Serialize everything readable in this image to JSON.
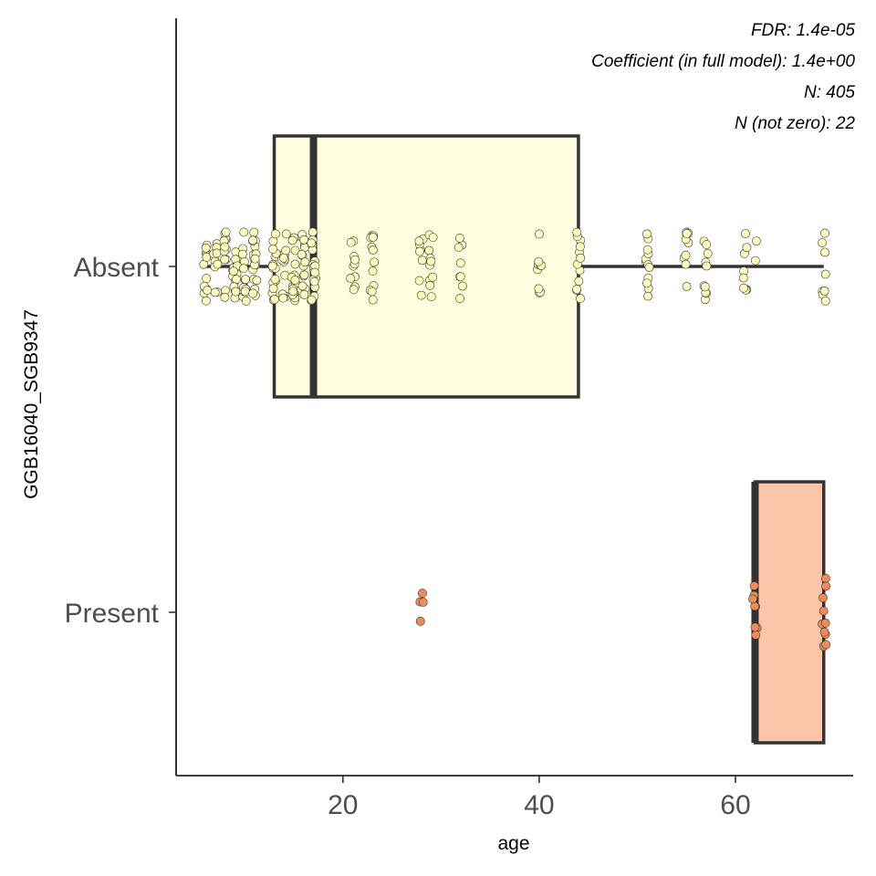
{
  "chart_data": {
    "type": "boxplot",
    "orientation": "horizontal",
    "xlabel": "age",
    "ylabel": "GGB16040_SGB9347",
    "xlim": [
      3,
      72
    ],
    "x_ticks": [
      20,
      40,
      60
    ],
    "categories": [
      "Absent",
      "Present"
    ],
    "annotations": [
      "FDR: 1.4e-05",
      "Coefficient (in full model): 1.4e+00",
      "N: 405",
      "N (not zero): 22"
    ],
    "grid": false,
    "legend": "none",
    "boxes": [
      {
        "category": "Absent",
        "color": "#FFFFE0",
        "point_color": "#FFFFBF",
        "q1": 13,
        "median": 17,
        "q3": 44,
        "whisker_low": 6,
        "whisker_high": 69
      },
      {
        "category": "Present",
        "color": "#FCC5AA",
        "point_color": "#F08C5A",
        "q1": 62,
        "median": 62,
        "q3": 69,
        "whisker_low": 62,
        "whisker_high": 69
      }
    ],
    "points": [
      {
        "category": "Absent",
        "groups": [
          {
            "x": 6,
            "n": 12
          },
          {
            "x": 7,
            "n": 10
          },
          {
            "x": 8,
            "n": 12
          },
          {
            "x": 9,
            "n": 16
          },
          {
            "x": 10,
            "n": 14
          },
          {
            "x": 11,
            "n": 18
          },
          {
            "x": 13,
            "n": 16
          },
          {
            "x": 14,
            "n": 14
          },
          {
            "x": 15,
            "n": 16
          },
          {
            "x": 16,
            "n": 14
          },
          {
            "x": 17,
            "n": 18
          },
          {
            "x": 21,
            "n": 10
          },
          {
            "x": 23,
            "n": 12
          },
          {
            "x": 28,
            "n": 8
          },
          {
            "x": 29,
            "n": 10
          },
          {
            "x": 32,
            "n": 8
          },
          {
            "x": 40,
            "n": 10
          },
          {
            "x": 44,
            "n": 12
          },
          {
            "x": 51,
            "n": 12
          },
          {
            "x": 55,
            "n": 10
          },
          {
            "x": 57,
            "n": 10
          },
          {
            "x": 61,
            "n": 8
          },
          {
            "x": 62,
            "n": 2
          },
          {
            "x": 69,
            "n": 8
          }
        ]
      },
      {
        "category": "Present",
        "groups": [
          {
            "x": 28,
            "n": 4
          },
          {
            "x": 62,
            "n": 8
          },
          {
            "x": 69,
            "n": 10
          }
        ]
      }
    ]
  }
}
